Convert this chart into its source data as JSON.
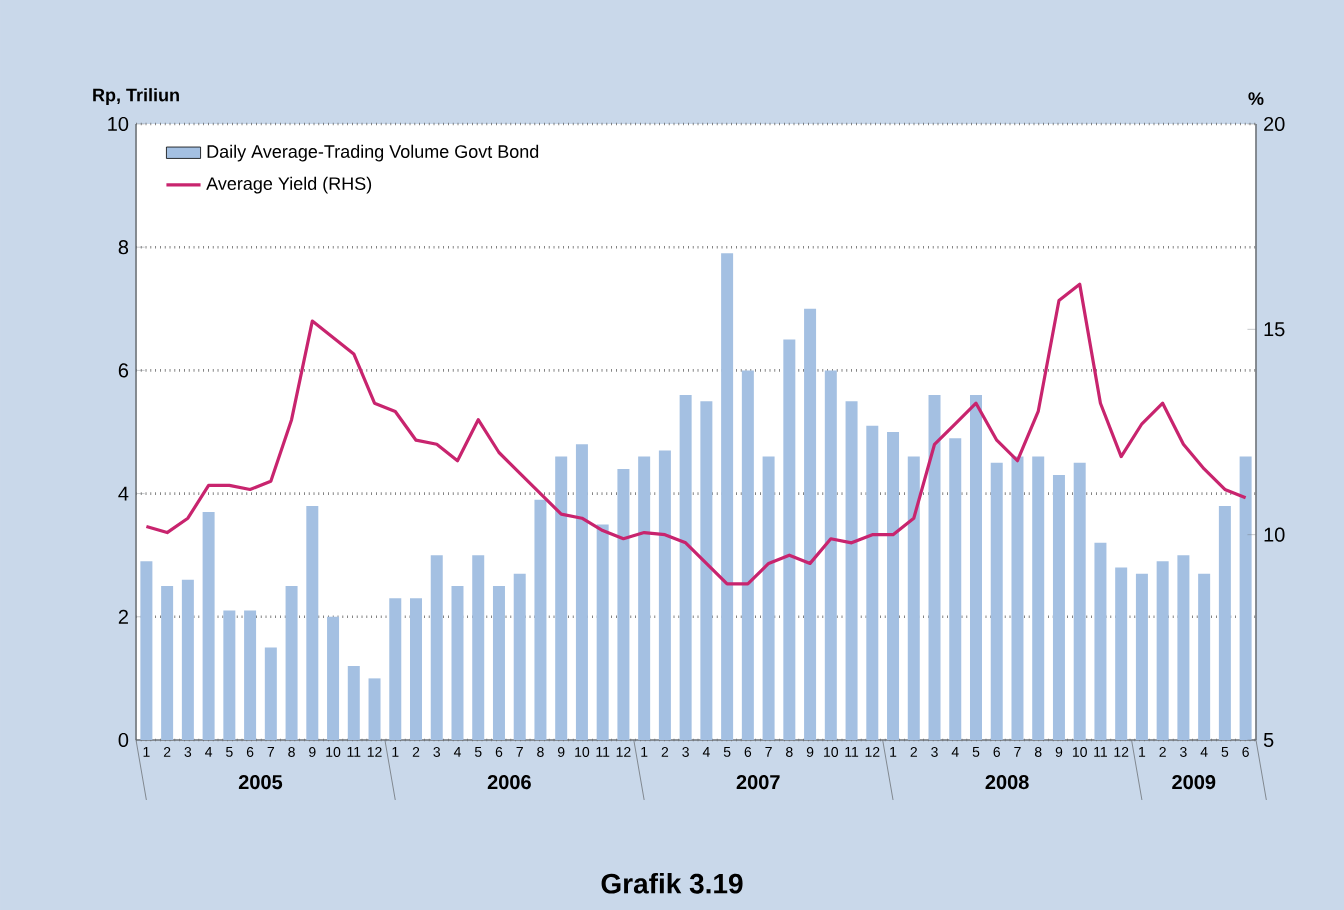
{
  "chart_data": {
    "type": "bar",
    "title": "Grafik 3.19",
    "ylabel": "Rp, Triliun",
    "y2label": "%",
    "categories": [
      "1",
      "2",
      "3",
      "4",
      "5",
      "6",
      "7",
      "8",
      "9",
      "10",
      "11",
      "12",
      "1",
      "2",
      "3",
      "4",
      "5",
      "6",
      "7",
      "8",
      "9",
      "10",
      "11",
      "12",
      "1",
      "2",
      "3",
      "4",
      "5",
      "6",
      "7",
      "8",
      "9",
      "10",
      "11",
      "12",
      "1",
      "2",
      "3",
      "4",
      "5",
      "6",
      "7",
      "8",
      "9",
      "10",
      "11",
      "12",
      "1",
      "2",
      "3",
      "4",
      "5",
      "6"
    ],
    "series": [
      {
        "name": "Daily Average-Trading Volume Govt Bond",
        "color": "#a4c0e2",
        "values": [
          2.9,
          2.5,
          2.6,
          3.7,
          2.1,
          2.1,
          1.5,
          2.5,
          3.8,
          2.0,
          1.2,
          1.0,
          2.3,
          2.3,
          3.0,
          2.5,
          3.0,
          2.5,
          2.7,
          3.9,
          4.6,
          4.8,
          3.5,
          4.4,
          4.6,
          4.7,
          5.6,
          5.5,
          7.9,
          6.0,
          4.6,
          6.5,
          7.0,
          6.0,
          5.5,
          5.1,
          5.0,
          4.6,
          5.6,
          4.9,
          5.6,
          4.5,
          4.6,
          4.6,
          4.3,
          4.5,
          3.2,
          2.8,
          2.7,
          2.9,
          3.0,
          2.7,
          3.8,
          4.6
        ]
      },
      {
        "name": "Average Yield (RHS)",
        "type": "line",
        "axis": "y2",
        "color": "#c8246e",
        "values": [
          10.2,
          10.05,
          10.4,
          11.2,
          11.2,
          11.1,
          11.3,
          12.8,
          15.2,
          14.8,
          14.4,
          13.2,
          13.0,
          12.3,
          12.2,
          11.8,
          12.8,
          12.0,
          11.5,
          11.0,
          10.5,
          10.4,
          10.1,
          9.9,
          10.05,
          10.0,
          9.8,
          9.3,
          8.8,
          8.8,
          9.3,
          9.5,
          9.3,
          9.9,
          9.8,
          10.0,
          10.0,
          10.4,
          12.2,
          12.7,
          13.2,
          12.3,
          11.8,
          13.0,
          15.7,
          16.1,
          13.2,
          11.9,
          12.7,
          13.2,
          12.2,
          11.6,
          11.1,
          10.9
        ]
      }
    ],
    "ylim": [
      0,
      10
    ],
    "yticks": [
      0,
      2,
      4,
      6,
      8,
      10
    ],
    "y2lim": [
      5,
      20
    ],
    "y2ticks": [
      5,
      10,
      15,
      20
    ],
    "grid": "y",
    "legend": "top left",
    "marker": "none",
    "annotations": [
      "2005",
      "2006",
      "2007",
      "2008",
      "2009"
    ]
  }
}
